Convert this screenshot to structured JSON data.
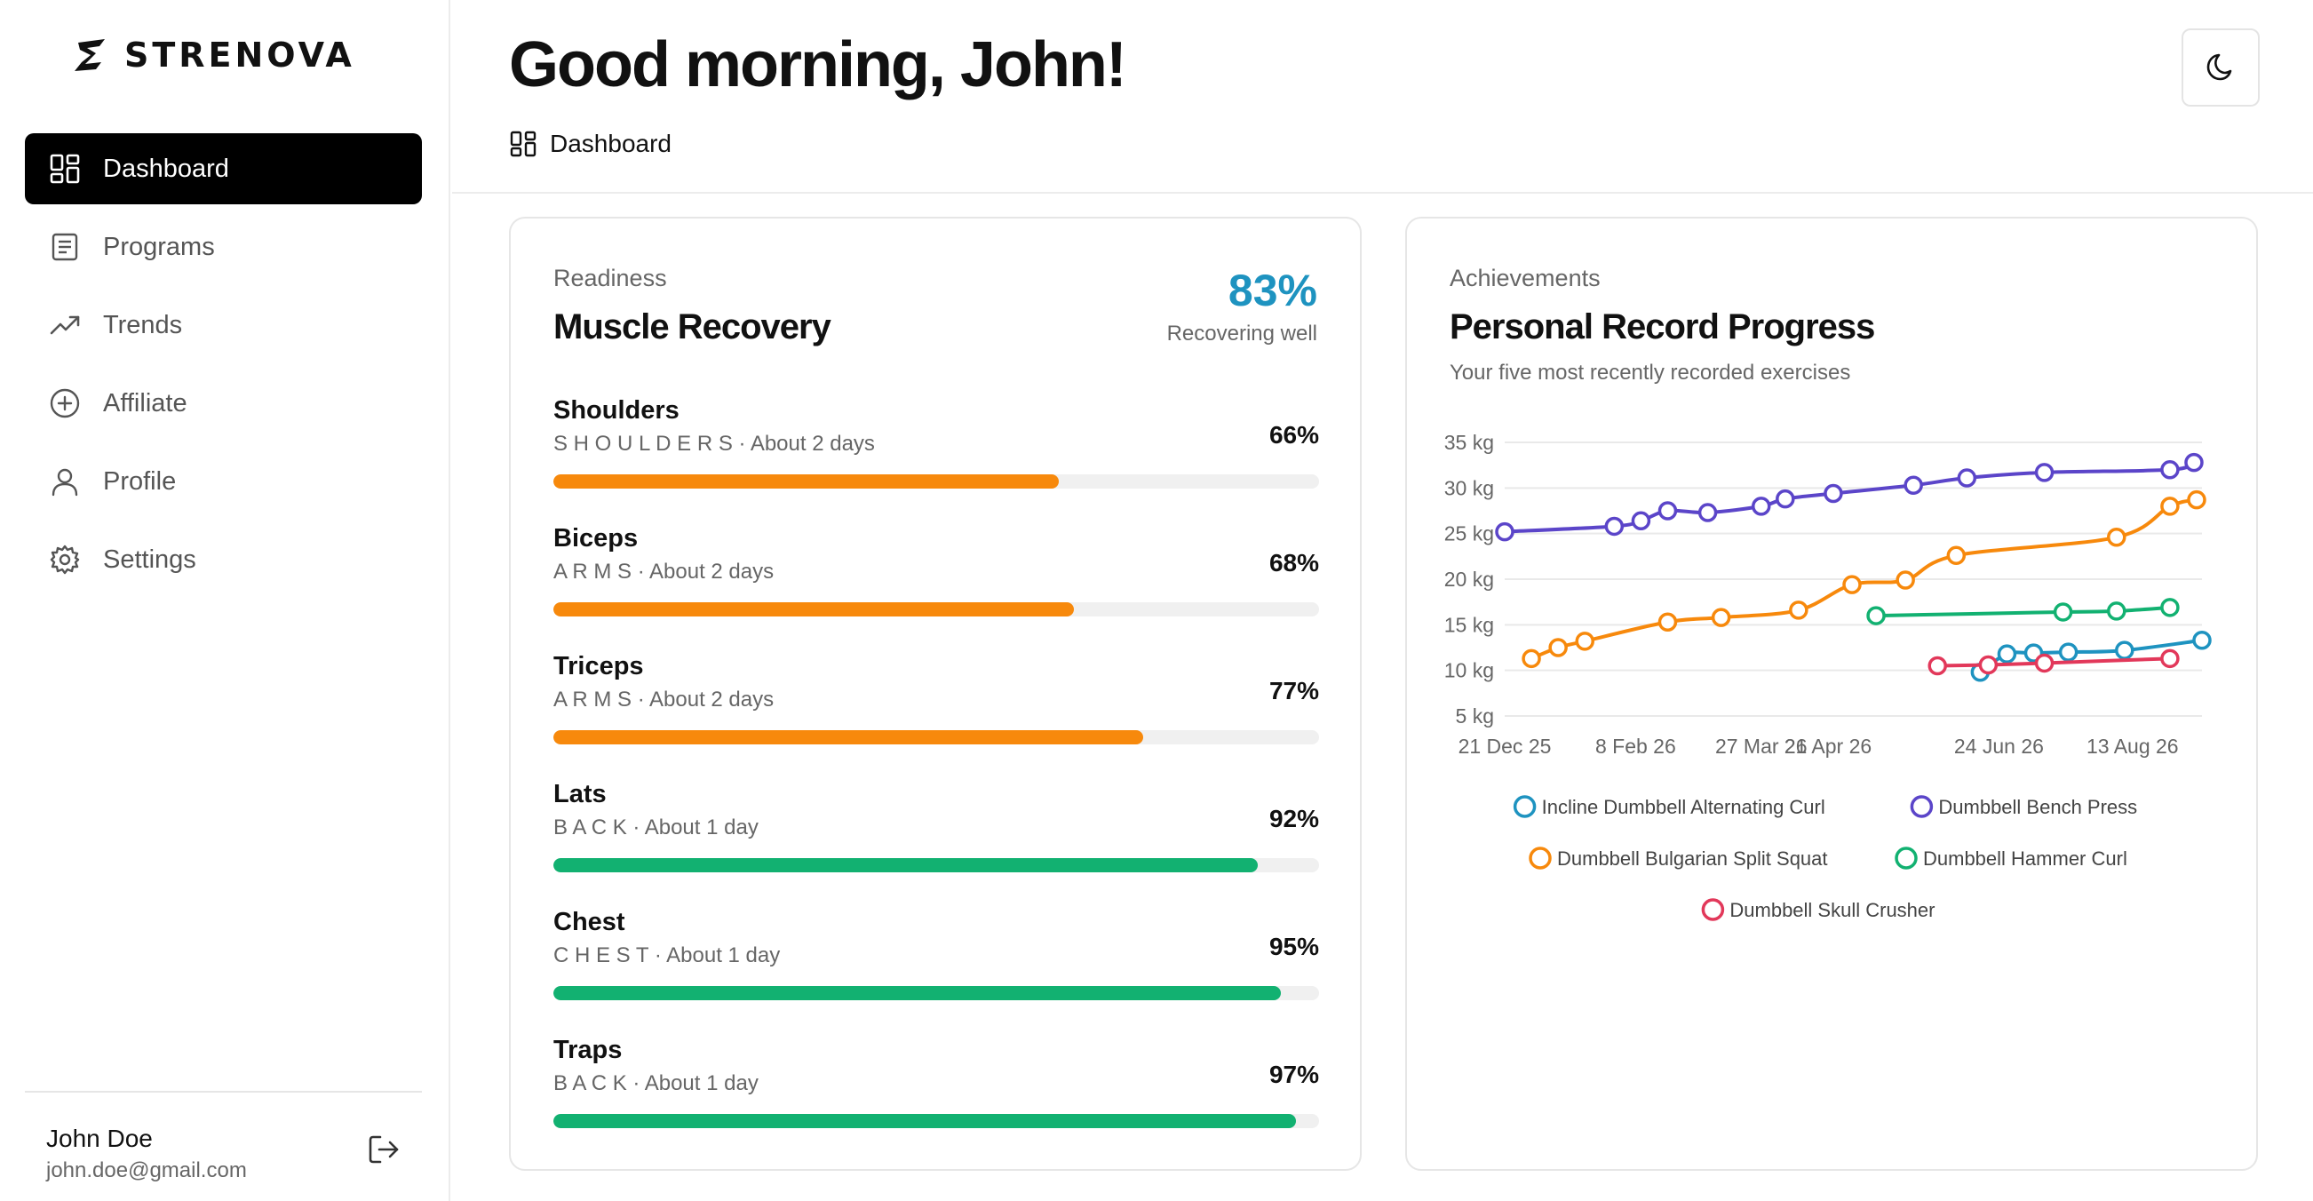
{
  "brand": {
    "name": "STRENOVA"
  },
  "sidebar": {
    "items": [
      {
        "label": "Dashboard",
        "icon": "dashboard-icon",
        "active": true
      },
      {
        "label": "Programs",
        "icon": "programs-icon",
        "active": false
      },
      {
        "label": "Trends",
        "icon": "trends-icon",
        "active": false
      },
      {
        "label": "Affiliate",
        "icon": "affiliate-icon",
        "active": false
      },
      {
        "label": "Profile",
        "icon": "profile-icon",
        "active": false
      },
      {
        "label": "Settings",
        "icon": "settings-icon",
        "active": false
      }
    ],
    "user": {
      "name": "John Doe",
      "email": "john.doe@gmail.com"
    }
  },
  "header": {
    "greeting": "Good morning, John!",
    "breadcrumb": "Dashboard"
  },
  "recovery": {
    "eyebrow": "Readiness",
    "title": "Muscle Recovery",
    "percent": "83%",
    "status": "Recovering well",
    "muscles": [
      {
        "name": "Shoulders",
        "meta": "S H O U L D E R S · About 2 days",
        "percent": "66%",
        "value": 0.66,
        "color": "#f7890c"
      },
      {
        "name": "Biceps",
        "meta": "A R M S · About 2 days",
        "percent": "68%",
        "value": 0.68,
        "color": "#f7890c"
      },
      {
        "name": "Triceps",
        "meta": "A R M S · About 2 days",
        "percent": "77%",
        "value": 0.77,
        "color": "#f7890c"
      },
      {
        "name": "Lats",
        "meta": "B A C K · About 1 day",
        "percent": "92%",
        "value": 0.92,
        "color": "#12b171"
      },
      {
        "name": "Chest",
        "meta": "C H E S T · About 1 day",
        "percent": "95%",
        "value": 0.95,
        "color": "#12b171"
      },
      {
        "name": "Traps",
        "meta": "B A C K · About 1 day",
        "percent": "97%",
        "value": 0.97,
        "color": "#12b171"
      }
    ]
  },
  "achievements": {
    "eyebrow": "Achievements",
    "title": "Personal Record Progress",
    "subtitle": "Your five most recently recorded exercises"
  },
  "chart_data": {
    "type": "line",
    "title": "Personal Record Progress",
    "ylim": [
      5,
      35
    ],
    "yticks": [
      5,
      10,
      15,
      20,
      25,
      30,
      35
    ],
    "ytick_labels": [
      "5 kg",
      "10 kg",
      "15 kg",
      "20 kg",
      "25 kg",
      "30 kg",
      "35 kg"
    ],
    "xlim": [
      "2025-12-21",
      "2026-09-08"
    ],
    "xticks": [
      "2025-12-21",
      "2026-02-08",
      "2026-03-27",
      "2026-04-21",
      "2026-06-24",
      "2026-08-13"
    ],
    "xtick_labels": [
      "21 Dec 25",
      "8 Feb 26",
      "27 Mar 26",
      "21 Apr 26",
      "24 Jun 26",
      "13 Aug 26"
    ],
    "grid": true,
    "legend_position": "bottom",
    "series": [
      {
        "name": "Incline Dumbbell Alternating Curl",
        "color": "#1e93c0",
        "points": [
          [
            "2026-06-17",
            9.8
          ],
          [
            "2026-06-27",
            11.8
          ],
          [
            "2026-07-07",
            11.9
          ],
          [
            "2026-07-20",
            12.0
          ],
          [
            "2026-08-10",
            12.2
          ],
          [
            "2026-09-08",
            13.3
          ]
        ]
      },
      {
        "name": "Dumbbell Bench Press",
        "color": "#5b45c9",
        "points": [
          [
            "2025-12-21",
            25.2
          ],
          [
            "2026-01-31",
            25.8
          ],
          [
            "2026-02-10",
            26.4
          ],
          [
            "2026-02-20",
            27.5
          ],
          [
            "2026-03-07",
            27.3
          ],
          [
            "2026-03-27",
            28.0
          ],
          [
            "2026-04-05",
            28.8
          ],
          [
            "2026-04-23",
            29.4
          ],
          [
            "2026-05-23",
            30.3
          ],
          [
            "2026-06-12",
            31.1
          ],
          [
            "2026-07-11",
            31.7
          ],
          [
            "2026-08-27",
            32.0
          ],
          [
            "2026-09-05",
            32.8
          ]
        ]
      },
      {
        "name": "Dumbbell Bulgarian Split Squat",
        "color": "#f7890c",
        "points": [
          [
            "2025-12-31",
            11.3
          ],
          [
            "2026-01-10",
            12.5
          ],
          [
            "2026-01-20",
            13.2
          ],
          [
            "2026-02-20",
            15.3
          ],
          [
            "2026-03-12",
            15.8
          ],
          [
            "2026-04-10",
            16.6
          ],
          [
            "2026-04-30",
            19.4
          ],
          [
            "2026-05-20",
            19.9
          ],
          [
            "2026-06-08",
            22.6
          ],
          [
            "2026-08-07",
            24.6
          ],
          [
            "2026-08-27",
            28.0
          ],
          [
            "2026-09-06",
            28.7
          ]
        ]
      },
      {
        "name": "Dumbbell Hammer Curl",
        "color": "#12b171",
        "points": [
          [
            "2026-05-09",
            16.0
          ],
          [
            "2026-07-18",
            16.4
          ],
          [
            "2026-08-07",
            16.5
          ],
          [
            "2026-08-27",
            16.9
          ]
        ]
      },
      {
        "name": "Dumbbell Skull Crusher",
        "color": "#e2385a",
        "points": [
          [
            "2026-06-01",
            10.5
          ],
          [
            "2026-06-20",
            10.6
          ],
          [
            "2026-07-11",
            10.8
          ],
          [
            "2026-08-27",
            11.3
          ]
        ]
      }
    ]
  }
}
